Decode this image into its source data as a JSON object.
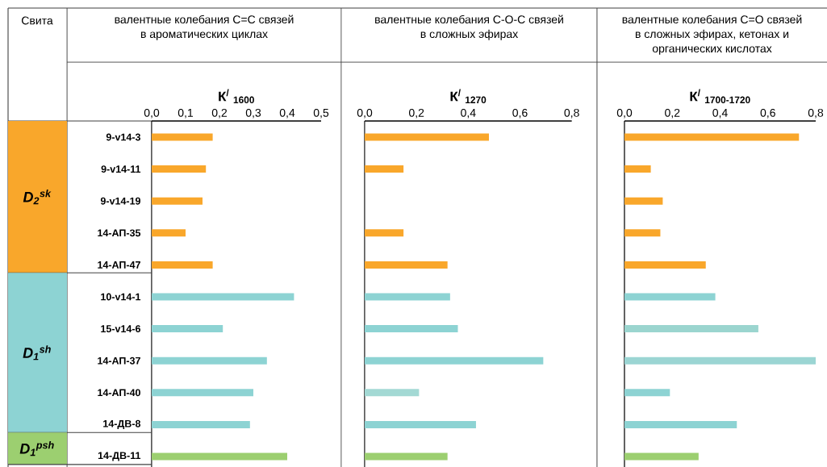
{
  "chart_data": [
    {
      "type": "bar",
      "orientation": "horizontal",
      "title": "валентные колебания С=С связей в ароматических циклах",
      "xlabel": "К$^{/}$ $_{1600}$",
      "categories": [
        "9-v14-3",
        "9-v14-11",
        "9-v14-19",
        "14-АП-35",
        "14-АП-47",
        "10-v14-1",
        "15-v14-6",
        "14-АП-37",
        "14-АП-40",
        "14-ДВ-8",
        "14-ДВ-11"
      ],
      "values": [
        0.18,
        0.16,
        0.15,
        0.1,
        0.18,
        0.42,
        0.21,
        0.34,
        0.3,
        0.29,
        0.4
      ],
      "colors": [
        "#f9a72b",
        "#f9a72b",
        "#f9a72b",
        "#f9a72b",
        "#f9a72b",
        "#8dd3d3",
        "#8dd3d3",
        "#8dd3d3",
        "#8dd3d3",
        "#8dd3d3",
        "#9ccf70"
      ],
      "xlim": [
        0,
        0.5
      ],
      "xticks": [
        {
          "value": 0,
          "label": "0,0"
        },
        {
          "value": 0.1,
          "label": "0,1"
        },
        {
          "value": 0.2,
          "label": "0,2"
        },
        {
          "value": 0.3,
          "label": "0,3"
        },
        {
          "value": 0.4,
          "label": "0,4"
        },
        {
          "value": 0.5,
          "label": "0,5"
        }
      ],
      "annotations": [
        "Свита",
        "D$_{2}$$^{sk}$",
        "D$_{1}$$^{sh}$",
        "D$_{1}$$^{psh}$"
      ]
    },
    {
      "type": "bar",
      "orientation": "horizontal",
      "title": "валентные колебания С-О-С связей в сложных эфирах",
      "xlabel": "К$^{/}$ $_{1270}$",
      "categories": [
        "9-v14-3",
        "9-v14-11",
        "9-v14-19",
        "14-АП-35",
        "14-АП-47",
        "10-v14-1",
        "15-v14-6",
        "14-АП-37",
        "14-АП-40",
        "14-ДВ-8",
        "14-ДВ-11"
      ],
      "values": [
        0.48,
        0.15,
        null,
        0.15,
        0.32,
        0.33,
        0.36,
        0.69,
        0.21,
        0.43,
        0.32
      ],
      "colors": [
        "#f9a72b",
        "#f9a72b",
        "#f9a72b",
        "#f9a72b",
        "#f9a72b",
        "#8dd3d3",
        "#8dd3d3",
        "#8dd3d3",
        "#a3d9d4",
        "#8dd3d3",
        "#9ccf70"
      ],
      "xlim": [
        0,
        0.8
      ],
      "xticks": [
        {
          "value": 0,
          "label": "0,0"
        },
        {
          "value": 0.2,
          "label": "0,2"
        },
        {
          "value": 0.4,
          "label": "0,4"
        },
        {
          "value": 0.6,
          "label": "0,6"
        },
        {
          "value": 0.8,
          "label": "0,8"
        }
      ],
      "tick_labels": "x"
    },
    {
      "type": "bar",
      "orientation": "horizontal",
      "title": "валентные колебания С=О связей в сложных эфирах, кетонах и органических кислотах",
      "xlabel": "К$^{/}$ $_{1700-1720}$",
      "categories": [
        "9-v14-3",
        "9-v14-11",
        "9-v14-19",
        "14-АП-35",
        "14-АП-47",
        "10-v14-1",
        "15-v14-6",
        "14-АП-37",
        "14-АП-40",
        "14-ДВ-8",
        "14-ДВ-11"
      ],
      "values": [
        0.73,
        0.11,
        0.16,
        0.15,
        0.34,
        0.38,
        0.56,
        0.8,
        0.19,
        0.47,
        0.31
      ],
      "colors": [
        "#f9a72b",
        "#f9a72b",
        "#f9a72b",
        "#f9a72b",
        "#f9a72b",
        "#8dd3d3",
        "#9bd5cf",
        "#9bd5d3",
        "#8dd3d3",
        "#8dd3d3",
        "#9ccf70"
      ],
      "xlim": [
        0,
        0.8
      ],
      "xticks": [
        {
          "value": 0,
          "label": "0,0"
        },
        {
          "value": 0.2,
          "label": "0,2"
        },
        {
          "value": 0.4,
          "label": "0,4"
        },
        {
          "value": 0.6,
          "label": "0,6"
        },
        {
          "value": 0.8,
          "label": "0,8"
        }
      ],
      "tick_labels": "x"
    }
  ]
}
